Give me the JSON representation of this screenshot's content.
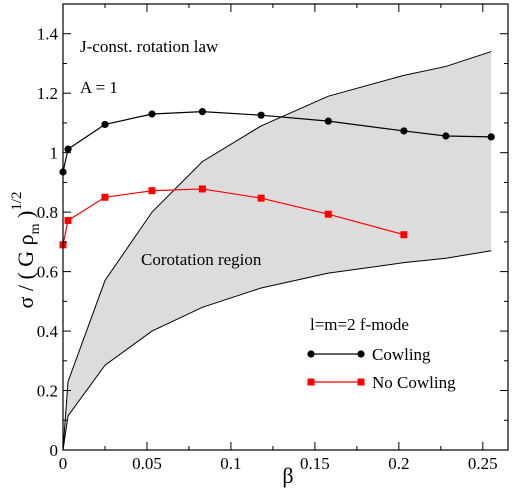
{
  "chart_data": {
    "type": "line",
    "xlabel": "β",
    "ylabel": "σ / ( G ρ",
    "ylabel_sub": "m",
    "ylabel_tail": " )",
    "ylabel_sup": "1/2",
    "xlim": [
      0,
      0.265
    ],
    "ylim": [
      0,
      1.5
    ],
    "xticks": [
      0,
      0.05,
      0.1,
      0.15,
      0.2,
      0.25
    ],
    "xtick_labels": [
      "0",
      "0.05",
      "0.1",
      "0.15",
      "0.2",
      "0.25"
    ],
    "yticks": [
      0,
      0.2,
      0.4,
      0.6,
      0.8,
      1.0,
      1.2,
      1.4
    ],
    "ytick_labels": [
      "0",
      "0.2",
      "0.4",
      "0.6",
      "0.8",
      "1",
      "1.2",
      "1.4"
    ],
    "grid": false,
    "annotations": {
      "law": "J-const. rotation law",
      "param": "A = 1",
      "region": "Corotation region",
      "mode": "l=m=2 f-mode"
    },
    "corotation_region": {
      "upper": {
        "x": [
          0,
          0.003,
          0.025,
          0.053,
          0.083,
          0.118,
          0.158,
          0.203,
          0.228,
          0.255
        ],
        "y": [
          0,
          0.23,
          0.57,
          0.8,
          0.97,
          1.09,
          1.19,
          1.26,
          1.29,
          1.34
        ]
      },
      "lower": {
        "x": [
          0,
          0.003,
          0.025,
          0.053,
          0.083,
          0.118,
          0.158,
          0.203,
          0.228,
          0.255
        ],
        "y": [
          0,
          0.115,
          0.285,
          0.4,
          0.48,
          0.545,
          0.595,
          0.63,
          0.645,
          0.67
        ]
      },
      "fill": "#dcdcdc"
    },
    "series": [
      {
        "name": "Cowling",
        "color": "#000000",
        "marker": "circle",
        "x": [
          0,
          0.003,
          0.025,
          0.053,
          0.083,
          0.118,
          0.158,
          0.203,
          0.228,
          0.255
        ],
        "y": [
          0.935,
          1.012,
          1.095,
          1.13,
          1.138,
          1.126,
          1.106,
          1.073,
          1.056,
          1.053
        ]
      },
      {
        "name": "No Cowling",
        "color": "#ff0000",
        "marker": "square",
        "x": [
          0,
          0.003,
          0.025,
          0.053,
          0.083,
          0.118,
          0.158,
          0.203
        ],
        "y": [
          0.69,
          0.772,
          0.85,
          0.872,
          0.878,
          0.847,
          0.793,
          0.724
        ]
      }
    ]
  }
}
